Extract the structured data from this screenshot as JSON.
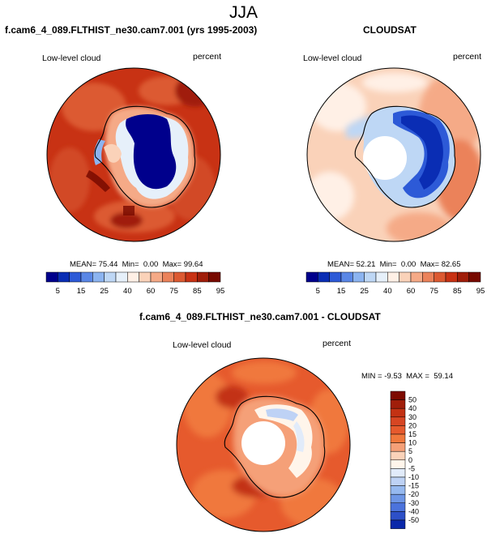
{
  "title": "JJA",
  "panels": [
    {
      "title": "f.cam6_4_089.FLTHIST_ne30.cam7.001 (yrs 1995-2003)",
      "left_label": "Low-level cloud",
      "right_label": "percent",
      "stats": "MEAN= 75.44  Min=  0.00  Max= 99.64"
    },
    {
      "title": "CLOUDSAT",
      "left_label": "Low-level cloud",
      "right_label": "percent",
      "stats": "MEAN= 52.21  Min=  0.00  Max= 82.65"
    },
    {
      "title": "f.cam6_4_089.FLTHIST_ne30.cam7.001 - CLOUDSAT",
      "left_label": "Low-level cloud",
      "right_label": "percent",
      "stats": "MIN = -9.53  MAX =  59.14"
    }
  ],
  "colorbar_abs": {
    "labels": [
      "5",
      "15",
      "25",
      "40",
      "60",
      "75",
      "85",
      "95"
    ],
    "colors": [
      "#00008c",
      "#0a2db4",
      "#2d5ad7",
      "#5a87e6",
      "#8cb4f0",
      "#bed7f5",
      "#e6f0fa",
      "#fff0e6",
      "#fad2b9",
      "#f5aa87",
      "#eb825a",
      "#dc5a32",
      "#c83214",
      "#a01e0a",
      "#780a00"
    ]
  },
  "colorbar_diff": {
    "labels": [
      "50",
      "40",
      "30",
      "20",
      "15",
      "10",
      "5",
      "0",
      "-5",
      "-10",
      "-15",
      "-20",
      "-30",
      "-40",
      "-50"
    ],
    "colors": [
      "#7d0a00",
      "#a01e0a",
      "#c33214",
      "#d74623",
      "#e65a2d",
      "#f0783c",
      "#f5a078",
      "#fad2b9",
      "#fff5eb",
      "#e1ebfa",
      "#bed2f5",
      "#96b9f0",
      "#6e96e6",
      "#4b73dc",
      "#2d50c8",
      "#0a28aa"
    ]
  }
}
